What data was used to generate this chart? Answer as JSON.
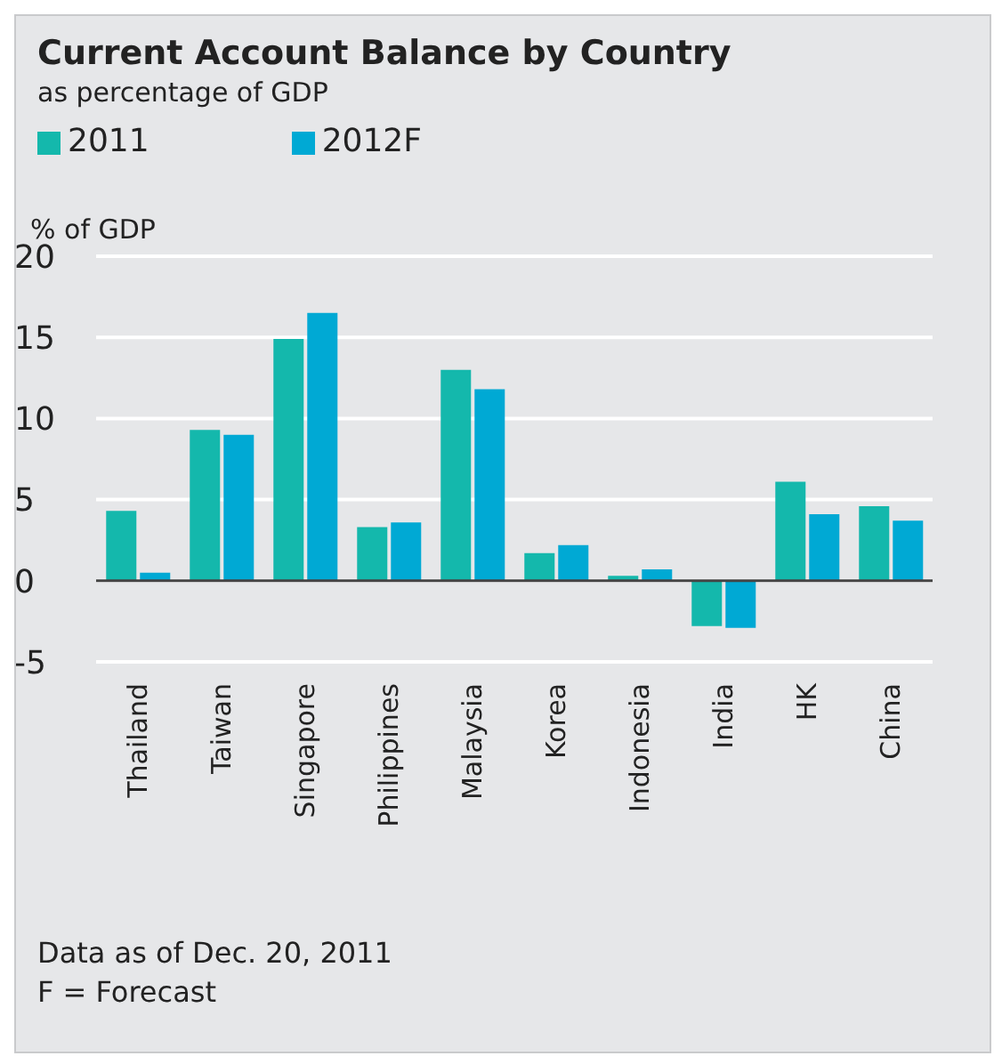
{
  "chart_data": {
    "type": "bar",
    "title": "Current Account Balance by Country",
    "subtitle": "as percentage of GDP",
    "ylabel": "% of GDP",
    "categories": [
      "Thailand",
      "Taiwan",
      "Singapore",
      "Philippines",
      "Malaysia",
      "Korea",
      "Indonesia",
      "India",
      "HK",
      "China"
    ],
    "series": [
      {
        "name": "2011",
        "color": "#14b8ac",
        "values": [
          4.3,
          9.3,
          14.9,
          3.3,
          13.0,
          1.7,
          0.3,
          -2.8,
          6.1,
          4.6
        ]
      },
      {
        "name": "2012F",
        "color": "#00a9d4",
        "values": [
          0.5,
          9.0,
          16.5,
          3.6,
          11.8,
          2.2,
          0.7,
          -2.9,
          4.1,
          3.7
        ]
      }
    ],
    "ylim": [
      -5,
      20
    ],
    "yticks": [
      -5,
      0,
      5,
      10,
      15,
      20
    ],
    "grid": "y",
    "legend": "top left",
    "annotations": [
      "Data as of Dec. 20, 2011",
      "F = Forecast"
    ]
  }
}
